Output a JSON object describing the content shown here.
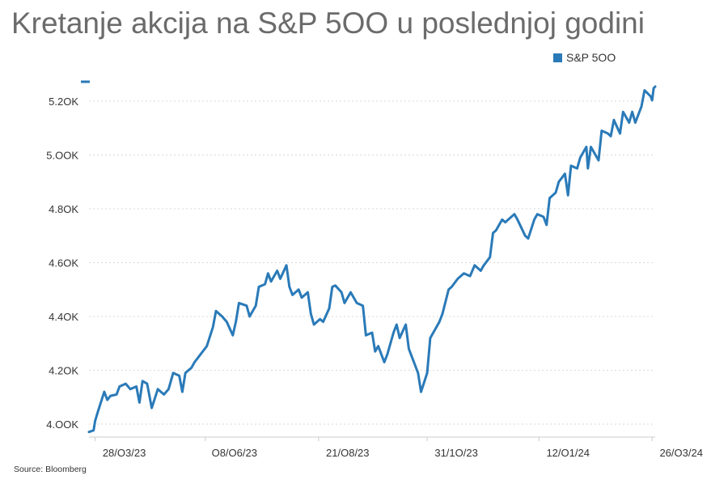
{
  "title": "Kretanje akcija na S&P 5OO u poslednjoj godini",
  "source": "Source: Bloomberg",
  "colors": {
    "series": "#2a7ab8",
    "grid": "#d9d9d9",
    "axis": "#cccccc",
    "text": "#333333"
  },
  "chart_data": {
    "type": "line",
    "title": "Kretanje akcija na S&P 5OO u poslednjoj godini",
    "xlabel": "",
    "ylabel": "",
    "ylim": [
      3970,
      5275
    ],
    "grid": true,
    "legend_position": "top-right",
    "y_ticks": [
      {
        "value": 4000,
        "label": "4.OOK"
      },
      {
        "value": 4200,
        "label": "4.2OK"
      },
      {
        "value": 4400,
        "label": "4.4OK"
      },
      {
        "value": 4600,
        "label": "4.6OK"
      },
      {
        "value": 4800,
        "label": "4.8OK"
      },
      {
        "value": 5000,
        "label": "5.OOK"
      },
      {
        "value": 5200,
        "label": "5.2OK"
      }
    ],
    "x_ticks": [
      {
        "date": "2023-03-28",
        "label": "28/O3/23"
      },
      {
        "date": "2023-06-08",
        "label": "O8/O6/23"
      },
      {
        "date": "2023-08-21",
        "label": "21/O8/23"
      },
      {
        "date": "2023-10-31",
        "label": "31/1O/23"
      },
      {
        "date": "2024-01-12",
        "label": "12/O1/24"
      },
      {
        "date": "2024-03-26",
        "label": "26/O3/24"
      }
    ],
    "series": [
      {
        "name": "S&P 5OO",
        "points": [
          [
            "2023-03-24",
            3971
          ],
          [
            "2023-03-27",
            3977
          ],
          [
            "2023-03-28",
            4012
          ],
          [
            "2023-03-30",
            4050
          ],
          [
            "2023-04-03",
            4120
          ],
          [
            "2023-04-05",
            4090
          ],
          [
            "2023-04-07",
            4105
          ],
          [
            "2023-04-11",
            4110
          ],
          [
            "2023-04-13",
            4140
          ],
          [
            "2023-04-17",
            4150
          ],
          [
            "2023-04-20",
            4130
          ],
          [
            "2023-04-24",
            4140
          ],
          [
            "2023-04-26",
            4080
          ],
          [
            "2023-04-28",
            4160
          ],
          [
            "2023-05-01",
            4150
          ],
          [
            "2023-05-04",
            4060
          ],
          [
            "2023-05-08",
            4130
          ],
          [
            "2023-05-10",
            4120
          ],
          [
            "2023-05-12",
            4110
          ],
          [
            "2023-05-15",
            4130
          ],
          [
            "2023-05-18",
            4190
          ],
          [
            "2023-05-22",
            4180
          ],
          [
            "2023-05-24",
            4120
          ],
          [
            "2023-05-26",
            4190
          ],
          [
            "2023-05-30",
            4210
          ],
          [
            "2023-06-01",
            4230
          ],
          [
            "2023-06-05",
            4260
          ],
          [
            "2023-06-07",
            4275
          ],
          [
            "2023-06-09",
            4290
          ],
          [
            "2023-06-13",
            4360
          ],
          [
            "2023-06-15",
            4420
          ],
          [
            "2023-06-19",
            4400
          ],
          [
            "2023-06-22",
            4380
          ],
          [
            "2023-06-26",
            4330
          ],
          [
            "2023-06-28",
            4380
          ],
          [
            "2023-06-30",
            4450
          ],
          [
            "2023-07-05",
            4440
          ],
          [
            "2023-07-07",
            4400
          ],
          [
            "2023-07-11",
            4440
          ],
          [
            "2023-07-13",
            4510
          ],
          [
            "2023-07-17",
            4520
          ],
          [
            "2023-07-19",
            4560
          ],
          [
            "2023-07-21",
            4530
          ],
          [
            "2023-07-25",
            4570
          ],
          [
            "2023-07-27",
            4540
          ],
          [
            "2023-07-31",
            4590
          ],
          [
            "2023-08-02",
            4510
          ],
          [
            "2023-08-04",
            4480
          ],
          [
            "2023-08-08",
            4500
          ],
          [
            "2023-08-10",
            4470
          ],
          [
            "2023-08-14",
            4490
          ],
          [
            "2023-08-16",
            4410
          ],
          [
            "2023-08-18",
            4370
          ],
          [
            "2023-08-22",
            4390
          ],
          [
            "2023-08-24",
            4380
          ],
          [
            "2023-08-28",
            4430
          ],
          [
            "2023-08-30",
            4510
          ],
          [
            "2023-09-01",
            4515
          ],
          [
            "2023-09-05",
            4490
          ],
          [
            "2023-09-07",
            4450
          ],
          [
            "2023-09-11",
            4490
          ],
          [
            "2023-09-13",
            4470
          ],
          [
            "2023-09-15",
            4450
          ],
          [
            "2023-09-19",
            4440
          ],
          [
            "2023-09-21",
            4330
          ],
          [
            "2023-09-25",
            4340
          ],
          [
            "2023-09-27",
            4270
          ],
          [
            "2023-09-29",
            4290
          ],
          [
            "2023-10-03",
            4230
          ],
          [
            "2023-10-05",
            4260
          ],
          [
            "2023-10-09",
            4340
          ],
          [
            "2023-10-11",
            4370
          ],
          [
            "2023-10-13",
            4320
          ],
          [
            "2023-10-17",
            4370
          ],
          [
            "2023-10-19",
            4280
          ],
          [
            "2023-10-23",
            4220
          ],
          [
            "2023-10-25",
            4190
          ],
          [
            "2023-10-27",
            4120
          ],
          [
            "2023-10-31",
            4190
          ],
          [
            "2023-11-02",
            4320
          ],
          [
            "2023-11-06",
            4360
          ],
          [
            "2023-11-08",
            4380
          ],
          [
            "2023-11-10",
            4410
          ],
          [
            "2023-11-14",
            4500
          ],
          [
            "2023-11-16",
            4510
          ],
          [
            "2023-11-20",
            4540
          ],
          [
            "2023-11-24",
            4560
          ],
          [
            "2023-11-28",
            4550
          ],
          [
            "2023-12-01",
            4590
          ],
          [
            "2023-12-05",
            4570
          ],
          [
            "2023-12-07",
            4590
          ],
          [
            "2023-12-11",
            4620
          ],
          [
            "2023-12-13",
            4710
          ],
          [
            "2023-12-15",
            4720
          ],
          [
            "2023-12-19",
            4760
          ],
          [
            "2023-12-21",
            4750
          ],
          [
            "2023-12-27",
            4780
          ],
          [
            "2023-12-29",
            4760
          ],
          [
            "2024-01-03",
            4700
          ],
          [
            "2024-01-05",
            4690
          ],
          [
            "2024-01-09",
            4760
          ],
          [
            "2024-01-11",
            4780
          ],
          [
            "2024-01-15",
            4770
          ],
          [
            "2024-01-17",
            4740
          ],
          [
            "2024-01-19",
            4840
          ],
          [
            "2024-01-23",
            4860
          ],
          [
            "2024-01-25",
            4900
          ],
          [
            "2024-01-29",
            4930
          ],
          [
            "2024-01-31",
            4850
          ],
          [
            "2024-02-02",
            4960
          ],
          [
            "2024-02-06",
            4950
          ],
          [
            "2024-02-08",
            4990
          ],
          [
            "2024-02-12",
            5030
          ],
          [
            "2024-02-13",
            4950
          ],
          [
            "2024-02-15",
            5030
          ],
          [
            "2024-02-20",
            4980
          ],
          [
            "2024-02-22",
            5090
          ],
          [
            "2024-02-26",
            5080
          ],
          [
            "2024-02-28",
            5070
          ],
          [
            "2024-03-01",
            5130
          ],
          [
            "2024-03-05",
            5080
          ],
          [
            "2024-03-07",
            5160
          ],
          [
            "2024-03-11",
            5120
          ],
          [
            "2024-03-13",
            5160
          ],
          [
            "2024-03-15",
            5120
          ],
          [
            "2024-03-19",
            5180
          ],
          [
            "2024-03-21",
            5240
          ],
          [
            "2024-03-22",
            5235
          ],
          [
            "2024-03-25",
            5218
          ],
          [
            "2024-03-26",
            5203
          ],
          [
            "2024-03-27",
            5248
          ],
          [
            "2024-03-28",
            5254
          ]
        ]
      }
    ]
  }
}
